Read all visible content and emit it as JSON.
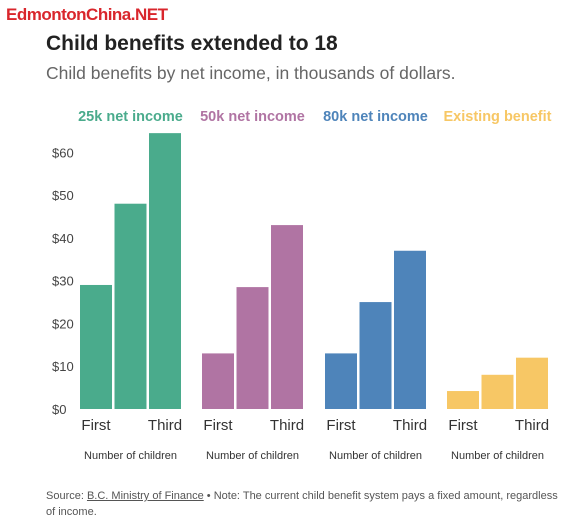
{
  "watermark": "EdmontonChina.NET",
  "header": {
    "title": "Child benefits extended to 18",
    "subtitle": "Child benefits by net income, in thousands of dollars."
  },
  "footer": {
    "source_label": "Source: ",
    "source_link": "B.C. Ministry of Finance",
    "note": " • Note: The current child benefit system pays a fixed amount, regardless of income."
  },
  "chart_data": {
    "type": "bar",
    "title": "Child benefits extended to 18",
    "subtitle": "Child benefits by net income, in thousands of dollars.",
    "ylim": [
      0,
      65
    ],
    "yticks": [
      0,
      10,
      20,
      30,
      40,
      50,
      60
    ],
    "ytick_labels": [
      "$0",
      "$10",
      "$20",
      "$30",
      "$40",
      "$50",
      "$60"
    ],
    "xlabel": "Number of children",
    "categories": [
      "First",
      "",
      "Third"
    ],
    "tick_labels": [
      "First",
      "Third"
    ],
    "panels": [
      {
        "name": "25k net income",
        "color": "#4aab8c",
        "values": [
          29,
          48,
          64.5
        ]
      },
      {
        "name": "50k net income",
        "color": "#b074a3",
        "values": [
          13,
          28.5,
          43
        ]
      },
      {
        "name": "80k net income",
        "color": "#4e84ba",
        "values": [
          13,
          25,
          37
        ]
      },
      {
        "name": "Existing benefit",
        "color": "#f7c765",
        "values": [
          4.2,
          8,
          12
        ]
      }
    ]
  }
}
